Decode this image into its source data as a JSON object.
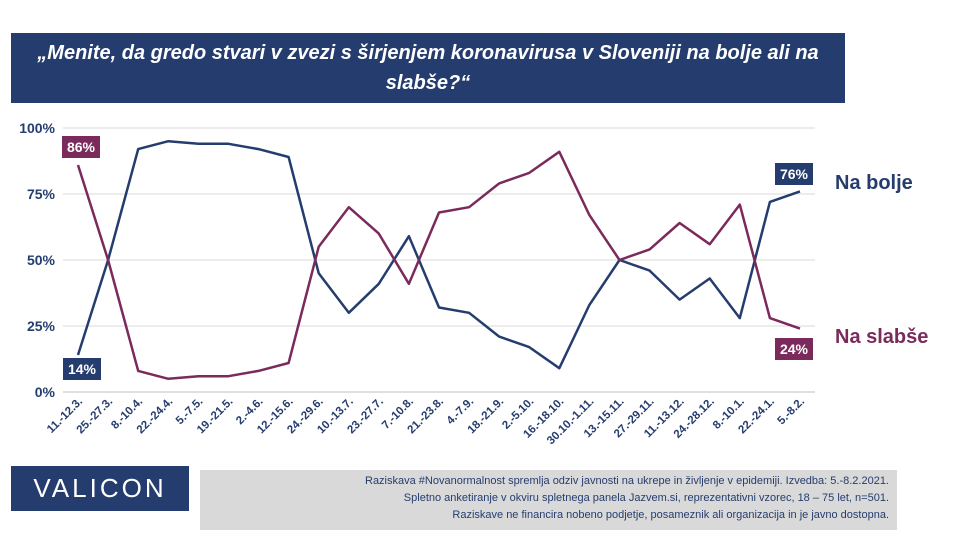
{
  "header": {
    "title": "„Menite, da gredo stvari v zvezi s širjenjem koronavirusa v Sloveniji na bolje ali na slabše?“"
  },
  "logo": {
    "text": "VALICON"
  },
  "note": {
    "lines": [
      "Raziskava #Novanormalnost spremlja odziv javnosti na ukrepe in življenje v epidemiji. Izvedba: 5.-8.2.2021.",
      "Spletno anketiranje v okviru spletnega panela Jazvem.si, reprezentativni vzorec, 18 – 75 let, n=501.",
      "Raziskave ne financira nobeno podjetje, posameznik ali organizacija in je javno dostopna."
    ]
  },
  "colors": {
    "bolje": "#253d6e",
    "slabse": "#7b2a5c",
    "title_bg": "#253d6e",
    "note_bg": "#d9d9d9"
  },
  "chart_data": {
    "type": "line",
    "title": "„Menite, da gredo stvari v zvezi s širjenjem koronavirusa v Sloveniji na bolje ali na slabše?“",
    "categories": [
      "11.-12.3.",
      "25.-27.3.",
      "8.-10.4.",
      "22.-24.4.",
      "5.-7.5.",
      "19.-21.5.",
      "2.-4.6.",
      "12.-15.6.",
      "24.-29.6.",
      "10.-13.7.",
      "23.-27.7.",
      "7.-10.8.",
      "21.-23.8.",
      "4.-7.9.",
      "18.-21.9.",
      "2.-5.10.",
      "16.-18.10.",
      "30.10.-1.11.",
      "13.-15.11.",
      "27.-29.11.",
      "11.-13.12.",
      "24.-28.12.",
      "8.-10.1.",
      "22.-24.1.",
      "5.-8.2."
    ],
    "y_tick_labels": [
      "0%",
      "25%",
      "50%",
      "75%",
      "100%"
    ],
    "ylim": [
      0,
      100
    ],
    "grid": true,
    "series": [
      {
        "name": "Na bolje",
        "color": "#253d6e",
        "values": [
          14,
          50,
          92,
          95,
          94,
          94,
          92,
          89,
          45,
          30,
          41,
          59,
          32,
          30,
          21,
          17,
          9,
          33,
          50,
          46,
          35,
          43,
          28,
          72,
          76
        ],
        "first_label": "14%",
        "last_label": "76%"
      },
      {
        "name": "Na slabše",
        "color": "#7b2a5c",
        "values": [
          86,
          50,
          8,
          5,
          6,
          6,
          8,
          11,
          55,
          70,
          60,
          41,
          68,
          70,
          79,
          83,
          91,
          67,
          50,
          54,
          64,
          56,
          71,
          28,
          24
        ],
        "first_label": "86%",
        "last_label": "24%"
      }
    ],
    "legend": [
      "Na bolje",
      "Na slabše"
    ]
  }
}
